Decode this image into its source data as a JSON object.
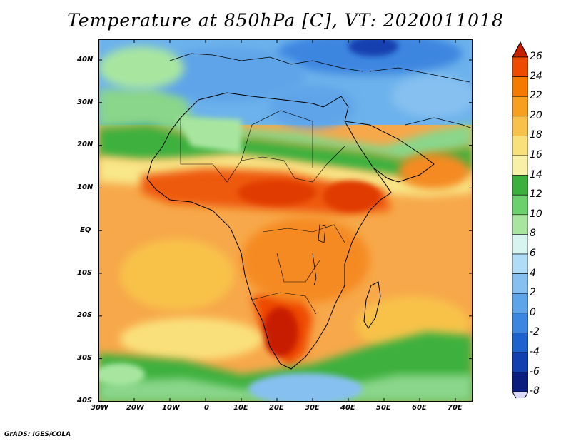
{
  "title": "Temperature at 850hPa [C], VT: 2020011018",
  "credit": "GrADS: IGES/COLA",
  "map": {
    "variable": "Temperature at 850hPa",
    "units": "C",
    "valid_time": "2020011018",
    "lon_range": [
      -30,
      75
    ],
    "lat_range": [
      -40,
      45
    ],
    "lat_ticks": [
      "40N",
      "30N",
      "20N",
      "10N",
      "EQ",
      "10S",
      "20S",
      "30S",
      "40S"
    ],
    "lon_ticks": [
      "30W",
      "20W",
      "10W",
      "0",
      "10E",
      "20E",
      "30E",
      "40E",
      "50E",
      "60E",
      "70E"
    ]
  },
  "colorbar": {
    "levels": [
      "26",
      "24",
      "22",
      "20",
      "18",
      "16",
      "14",
      "12",
      "10",
      "8",
      "6",
      "4",
      "2",
      "0",
      "-2",
      "-4",
      "-6",
      "-8"
    ],
    "colors": [
      "#c81e00",
      "#ee4a00",
      "#f57a00",
      "#f7a020",
      "#f8c24a",
      "#fae07a",
      "#f8f0a8",
      "#3cb03c",
      "#6cd06c",
      "#a8e6a0",
      "#d8f4f0",
      "#b0dcf8",
      "#86c0f0",
      "#5ea4e8",
      "#3a86e0",
      "#1e62d0",
      "#1240b0",
      "#0a1e80",
      "#dcd8f8"
    ]
  }
}
